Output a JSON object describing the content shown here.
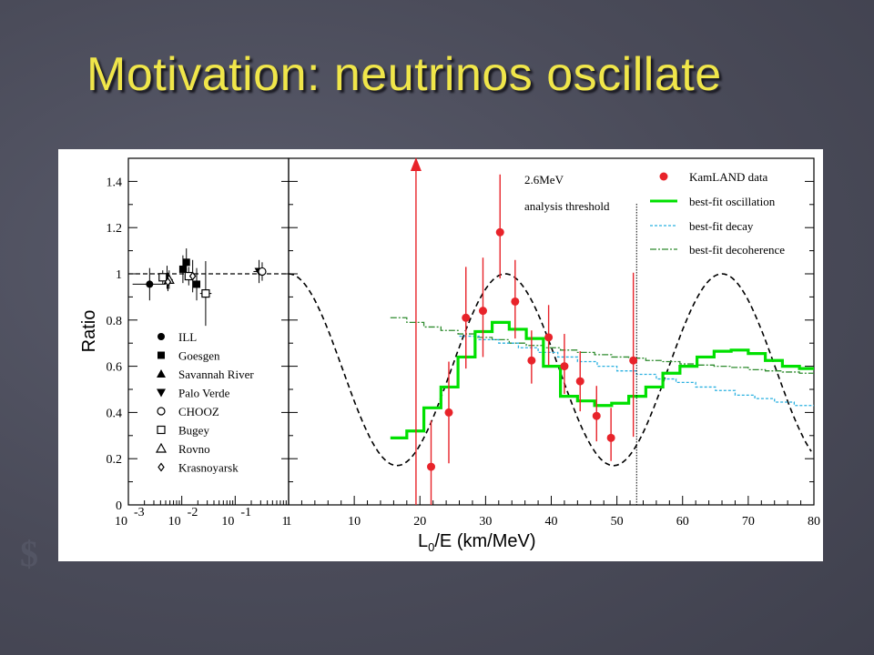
{
  "slide": {
    "title": "Motivation: neutrinos oscillate"
  },
  "chart_data": [
    {
      "type": "scatter",
      "panel": "left",
      "xscale": "log",
      "xlim": [
        0.001,
        1
      ],
      "ylim": [
        0,
        1.5
      ],
      "ylabel": "Ratio",
      "yticks": [
        "0",
        "0.2",
        "0.4",
        "0.6",
        "0.8",
        "1",
        "1.2",
        "1.4"
      ],
      "xticks": [
        {
          "base": "10",
          "exp": "-3"
        },
        {
          "base": "10",
          "exp": "-2"
        },
        {
          "base": "10",
          "exp": "-1"
        },
        {
          "base": "1",
          "exp": ""
        }
      ],
      "reference_line": 1,
      "legend_position": "bottom-left",
      "series": [
        {
          "name": "ILL",
          "marker": "filled-circle",
          "points": [
            {
              "x": 0.0025,
              "y": 0.955,
              "ex": [
                0.0012,
                0.005
              ],
              "ey": 0.07
            }
          ]
        },
        {
          "name": "Goesgen",
          "marker": "filled-square",
          "points": [
            {
              "x": 0.0105,
              "y": 1.02,
              "ex": [
                0.009,
                0.0125
              ],
              "ey": 0.06
            },
            {
              "x": 0.0122,
              "y": 1.05,
              "ex": [
                0.011,
                0.0135
              ],
              "ey": 0.06
            },
            {
              "x": 0.019,
              "y": 0.955,
              "ex": [
                0.0165,
                0.022
              ],
              "ey": 0.07
            }
          ]
        },
        {
          "name": "Savannah River",
          "marker": "filled-triangle-up",
          "points": [
            {
              "x": 0.0053,
              "y": 0.985,
              "ex": [
                0.0045,
                0.0062
              ],
              "ey": 0.05
            }
          ]
        },
        {
          "name": "Palo Verde",
          "marker": "filled-triangle-down",
          "points": [
            {
              "x": 0.28,
              "y": 1.01,
              "ex": [
                0.22,
                0.35
              ],
              "ey": 0.05
            }
          ]
        },
        {
          "name": "CHOOZ",
          "marker": "open-circle",
          "points": [
            {
              "x": 0.32,
              "y": 1.01,
              "ex": [
                0.27,
                0.38
              ],
              "ey": 0.04
            }
          ]
        },
        {
          "name": "Bugey",
          "marker": "open-square",
          "points": [
            {
              "x": 0.0044,
              "y": 0.985,
              "ex": [
                0.0038,
                0.005
              ],
              "ey": 0.03
            },
            {
              "x": 0.0135,
              "y": 0.99,
              "ex": [
                0.012,
                0.015
              ],
              "ey": 0.04
            },
            {
              "x": 0.028,
              "y": 0.915,
              "ex": [
                0.022,
                0.036
              ],
              "ey": 0.14
            }
          ]
        },
        {
          "name": "Rovno",
          "marker": "open-triangle-up",
          "points": [
            {
              "x": 0.0058,
              "y": 0.975,
              "ex": [
                0.005,
                0.0068
              ],
              "ey": 0.04
            }
          ]
        },
        {
          "name": "Krasnoyarsk",
          "marker": "open-diamond",
          "points": [
            {
              "x": 0.0055,
              "y": 0.965,
              "ex": [
                0.0048,
                0.0062
              ],
              "ey": 0.04
            },
            {
              "x": 0.016,
              "y": 0.99,
              "ex": [
                0.014,
                0.018
              ],
              "ey": 0.07
            }
          ]
        }
      ]
    },
    {
      "type": "line",
      "panel": "right",
      "xlabel": {
        "main": "L",
        "sub": "0",
        "rest": "/E (km/MeV)"
      },
      "xlim": [
        0,
        80
      ],
      "ylim": [
        0,
        1.5
      ],
      "xticks": [
        "1",
        "10",
        "20",
        "30",
        "40",
        "50",
        "60",
        "70",
        "80"
      ],
      "annotation": [
        "2.6MeV",
        "analysis threshold"
      ],
      "threshold_x": 53,
      "legend_position": "top-right",
      "series": [
        {
          "name": "KamLAND data",
          "kind": "points",
          "color": "#e8232a",
          "x": [
            21.7,
            24.4,
            27.0,
            29.6,
            32.2,
            34.5,
            37.0,
            39.6,
            42.0,
            44.4,
            46.9,
            49.1,
            52.5
          ],
          "y": [
            0.165,
            0.4,
            0.81,
            0.84,
            1.18,
            0.88,
            0.625,
            0.725,
            0.6,
            0.535,
            0.385,
            0.29,
            0.625
          ],
          "yerr_low": [
            0.165,
            0.22,
            0.22,
            0.2,
            0.2,
            0.16,
            0.1,
            0.12,
            0.12,
            0.13,
            0.11,
            0.1,
            0.33
          ],
          "yerr_high": [
            0.2,
            0.22,
            0.22,
            0.23,
            0.25,
            0.18,
            0.13,
            0.14,
            0.14,
            0.13,
            0.13,
            0.13,
            0.38
          ],
          "offscale_point": {
            "x": 19.4,
            "label": "arrow"
          }
        },
        {
          "name": "best-fit oscillation",
          "kind": "histogram",
          "color": "#00e000",
          "edges": [
            15.5,
            18.0,
            20.6,
            23.2,
            25.8,
            28.4,
            31.0,
            33.6,
            36.2,
            38.8,
            41.4,
            44.0,
            46.6,
            49.2,
            51.8,
            54.4,
            57.0,
            59.6,
            62.2,
            64.8,
            67.4,
            70.0,
            72.6,
            75.2,
            77.8,
            80.0
          ],
          "values": [
            0.29,
            0.32,
            0.42,
            0.51,
            0.64,
            0.75,
            0.79,
            0.76,
            0.72,
            0.6,
            0.47,
            0.45,
            0.43,
            0.44,
            0.47,
            0.51,
            0.57,
            0.6,
            0.64,
            0.665,
            0.67,
            0.655,
            0.625,
            0.6,
            0.59
          ]
        },
        {
          "name": "best-fit decay",
          "kind": "histogram",
          "color": "#29b0e0",
          "edges": [
            26.0,
            29.0,
            32.0,
            35.0,
            38.0,
            41.0,
            44.0,
            47.0,
            50.0,
            53.0,
            56.0,
            59.0,
            62.0,
            65.0,
            68.0,
            71.0,
            74.0,
            77.0,
            80.0
          ],
          "values": [
            0.73,
            0.715,
            0.7,
            0.68,
            0.66,
            0.64,
            0.62,
            0.6,
            0.58,
            0.565,
            0.545,
            0.53,
            0.51,
            0.495,
            0.475,
            0.46,
            0.445,
            0.43
          ]
        },
        {
          "name": "best-fit decoherence",
          "kind": "histogram",
          "color": "#2e8b2e",
          "edges": [
            15.5,
            18.0,
            20.6,
            23.2,
            25.8,
            28.4,
            31.0,
            33.6,
            36.2,
            38.8,
            41.4,
            44.0,
            46.6,
            49.2,
            51.8,
            54.4,
            57.0,
            59.6,
            62.2,
            64.8,
            67.4,
            70.0,
            72.6,
            75.2,
            77.8,
            80.0
          ],
          "values": [
            0.81,
            0.79,
            0.77,
            0.755,
            0.74,
            0.725,
            0.715,
            0.7,
            0.69,
            0.68,
            0.67,
            0.66,
            0.65,
            0.64,
            0.635,
            0.625,
            0.62,
            0.61,
            0.605,
            0.6,
            0.595,
            0.585,
            0.58,
            0.575,
            0.57
          ]
        },
        {
          "name": "",
          "kind": "curve",
          "style": "dashed-black",
          "description_of": "oscillation expectation (no label)",
          "x_range": [
            0,
            80
          ],
          "mean": 0.585,
          "amplitude": 0.415,
          "period": 33,
          "peak_x": 33
        }
      ]
    }
  ]
}
